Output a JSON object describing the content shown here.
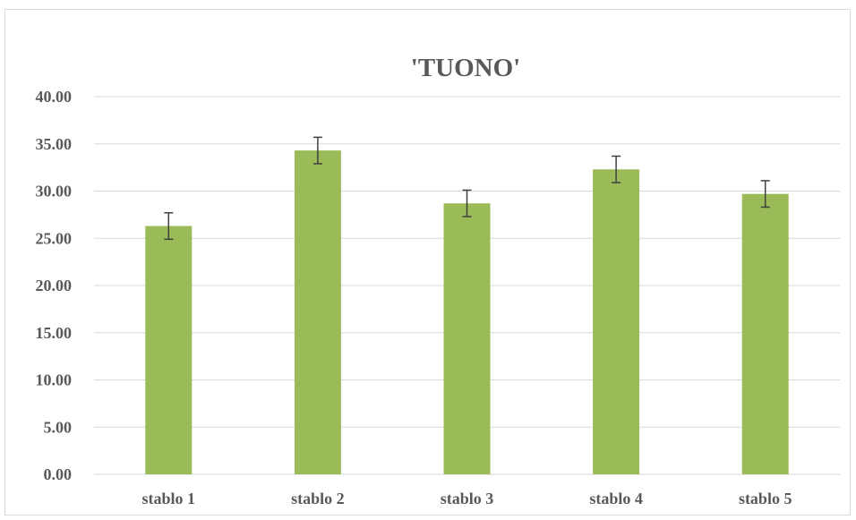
{
  "chart_data": {
    "type": "bar",
    "title": "'TUONO'",
    "xlabel": "",
    "ylabel": "",
    "categories": [
      "stablo 1",
      "stablo 2",
      "stablo 3",
      "stablo 4",
      "stablo 5"
    ],
    "series": [
      {
        "values": [
          26.3,
          34.3,
          28.7,
          32.3,
          29.7
        ],
        "error": [
          1.4,
          1.4,
          1.4,
          1.4,
          1.4
        ]
      }
    ],
    "ylim": [
      0,
      40
    ],
    "yticks": [
      "0.00",
      "5.00",
      "10.00",
      "15.00",
      "20.00",
      "25.00",
      "30.00",
      "35.00",
      "40.00"
    ],
    "grid": true,
    "legend": "none",
    "colors": {
      "bar": "#9bbb59",
      "error_bar": "#404040",
      "grid": "#d9d9d9",
      "text": "#595959"
    }
  }
}
